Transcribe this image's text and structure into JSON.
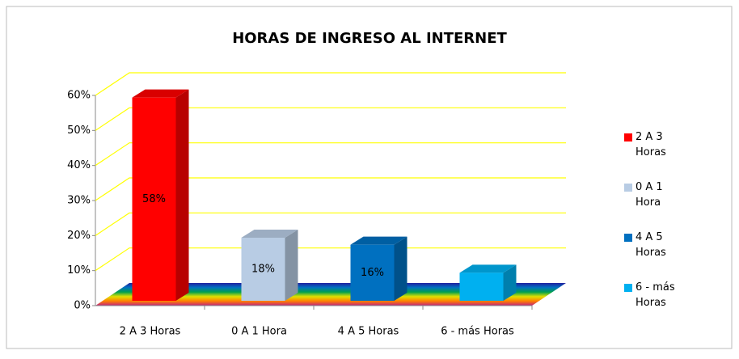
{
  "chart_data": {
    "type": "bar3d",
    "title": "HORAS DE INGRESO AL INTERNET",
    "categories": [
      "2 A 3 Horas",
      "0 A 1 Hora",
      "4 A 5 Horas",
      "6 - más Horas"
    ],
    "values": [
      58,
      18,
      16,
      8
    ],
    "value_labels": [
      "58%",
      "18%",
      "16%",
      null
    ],
    "colors": [
      "#ff0000",
      "#b8cce4",
      "#0070c0",
      "#00b0f0"
    ],
    "ylim": [
      0,
      60
    ],
    "yticks": [
      {
        "value": 0,
        "label": "0%"
      },
      {
        "value": 10,
        "label": "10%"
      },
      {
        "value": 20,
        "label": "20%"
      },
      {
        "value": 30,
        "label": "30%"
      },
      {
        "value": 40,
        "label": "40%"
      },
      {
        "value": 50,
        "label": "50%"
      },
      {
        "value": 60,
        "label": "60%"
      }
    ],
    "grid": true,
    "legend": "right"
  }
}
